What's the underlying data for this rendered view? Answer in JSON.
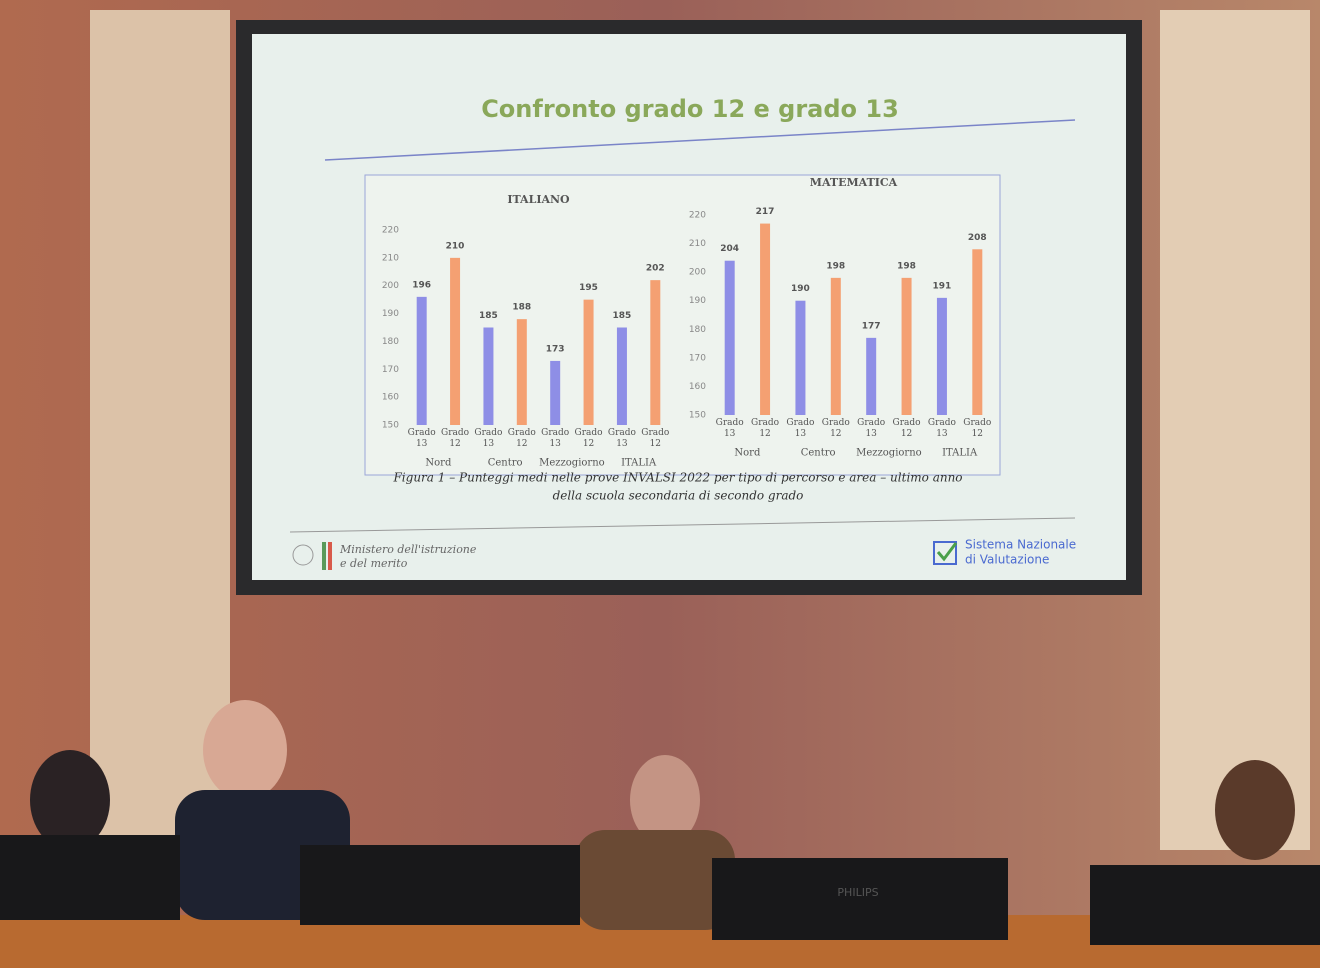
{
  "slide": {
    "title": "Confronto grado 12 e grado 13",
    "caption_lines": [
      "Figura 1 – Punteggi medi nelle prove INVALSI 2022 per tipo di percorso e area – ultimo anno",
      "della scuola secondaria di secondo grado"
    ],
    "ministry_lines": [
      "Ministero dell'istruzione",
      "e del merito"
    ],
    "snv_lines": [
      "Sistema Nazionale",
      "di Valutazione"
    ]
  },
  "monitor_brand": "PHILIPS",
  "chart_data": [
    {
      "type": "bar",
      "title": "ITALIANO",
      "categories": [
        "Nord",
        "Centro",
        "Mezzogiorno",
        "ITALIA"
      ],
      "series": [
        {
          "name": "Grado 13",
          "color": "#8e8ee6",
          "values": [
            196,
            185,
            173,
            185
          ]
        },
        {
          "name": "Grado 12",
          "color": "#f4a072",
          "values": [
            210,
            188,
            195,
            202
          ]
        }
      ],
      "ylim": [
        150,
        220
      ],
      "yticks": [
        150,
        160,
        170,
        180,
        190,
        200,
        210,
        220
      ]
    },
    {
      "type": "bar",
      "title": "MATEMATICA",
      "categories": [
        "Nord",
        "Centro",
        "Mezzogiorno",
        "ITALIA"
      ],
      "series": [
        {
          "name": "Grado 13",
          "color": "#8e8ee6",
          "values": [
            204,
            190,
            177,
            191
          ]
        },
        {
          "name": "Grado 12",
          "color": "#f4a072",
          "values": [
            217,
            198,
            198,
            208
          ]
        }
      ],
      "ylim": [
        150,
        220
      ],
      "yticks": [
        150,
        160,
        170,
        180,
        190,
        200,
        210,
        220
      ]
    }
  ]
}
